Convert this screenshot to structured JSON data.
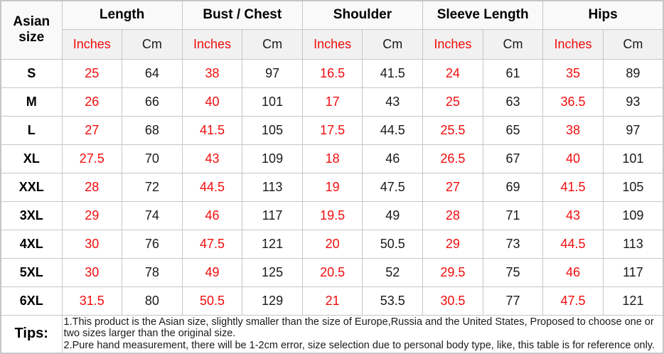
{
  "colors": {
    "accent_red": "#f20d0d",
    "text_black": "#1a1a1a",
    "border_gray": "#c6c6c6",
    "header_bg": "#f1f1f1"
  },
  "table": {
    "corner_header": "Asian size",
    "groups": [
      "Length",
      "Bust / Chest",
      "Shoulder",
      "Sleeve Length",
      "Hips"
    ],
    "unit_headers": {
      "inches": "Inches",
      "cm": "Cm"
    },
    "rows": [
      {
        "size": "S",
        "values": [
          "25",
          "64",
          "38",
          "97",
          "16.5",
          "41.5",
          "24",
          "61",
          "35",
          "89"
        ]
      },
      {
        "size": "M",
        "values": [
          "26",
          "66",
          "40",
          "101",
          "17",
          "43",
          "25",
          "63",
          "36.5",
          "93"
        ]
      },
      {
        "size": "L",
        "values": [
          "27",
          "68",
          "41.5",
          "105",
          "17.5",
          "44.5",
          "25.5",
          "65",
          "38",
          "97"
        ]
      },
      {
        "size": "XL",
        "values": [
          "27.5",
          "70",
          "43",
          "109",
          "18",
          "46",
          "26.5",
          "67",
          "40",
          "101"
        ]
      },
      {
        "size": "XXL",
        "values": [
          "28",
          "72",
          "44.5",
          "113",
          "19",
          "47.5",
          "27",
          "69",
          "41.5",
          "105"
        ]
      },
      {
        "size": "3XL",
        "values": [
          "29",
          "74",
          "46",
          "117",
          "19.5",
          "49",
          "28",
          "71",
          "43",
          "109"
        ]
      },
      {
        "size": "4XL",
        "values": [
          "30",
          "76",
          "47.5",
          "121",
          "20",
          "50.5",
          "29",
          "73",
          "44.5",
          "113"
        ]
      },
      {
        "size": "5XL",
        "values": [
          "30",
          "78",
          "49",
          "125",
          "20.5",
          "52",
          "29.5",
          "75",
          "46",
          "117"
        ]
      },
      {
        "size": "6XL",
        "values": [
          "31.5",
          "80",
          "50.5",
          "129",
          "21",
          "53.5",
          "30.5",
          "77",
          "47.5",
          "121"
        ]
      }
    ],
    "tips": {
      "label": "Tips:",
      "lines": [
        "1.This product is the Asian size, slightly smaller than the size of Europe,Russia and the United States, Proposed to choose one or two sizes larger than the original size.",
        "2.Pure hand measurement, there will be 1-2cm error, size selection due to personal body type, like, this table is for reference only."
      ]
    }
  }
}
